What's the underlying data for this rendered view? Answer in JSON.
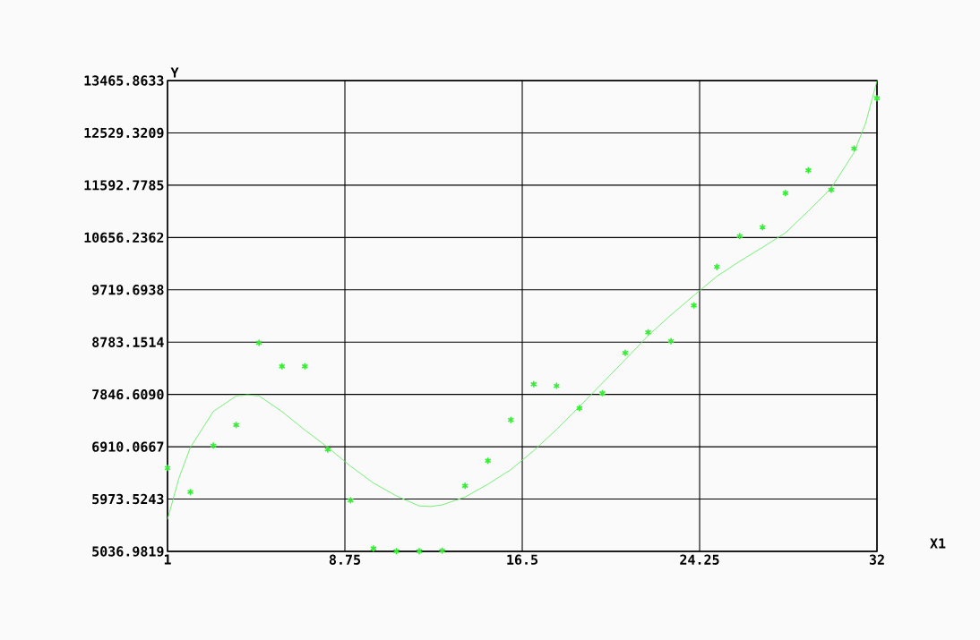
{
  "chart_data": {
    "type": "scatter",
    "xlabel": "X1",
    "ylabel": "Y",
    "xlim": [
      1,
      32
    ],
    "ylim": [
      5036.9819,
      13465.8633
    ],
    "xticks": [
      1,
      8.75,
      16.5,
      24.25,
      32
    ],
    "yticks": [
      {
        "value": 5036.9819,
        "label": "5036.9819"
      },
      {
        "value": 5973.5243,
        "label": "5973.5243"
      },
      {
        "value": 6910.0667,
        "label": "6910.0667"
      },
      {
        "value": 7846.609,
        "label": "7846.6090"
      },
      {
        "value": 8783.1514,
        "label": "8783.1514"
      },
      {
        "value": 9719.6938,
        "label": "9719.6938"
      },
      {
        "value": 10656.2362,
        "label": "10656.2362"
      },
      {
        "value": 11592.7785,
        "label": "11592.7785"
      },
      {
        "value": 12529.3209,
        "label": "12529.3209"
      },
      {
        "value": 13465.8633,
        "label": "13465.8633"
      }
    ],
    "grid": true,
    "series": [
      {
        "marker": "cross",
        "color": "#33ee33",
        "x": [
          1,
          2,
          3,
          4,
          5,
          6,
          7,
          8,
          9,
          10,
          11,
          12,
          13,
          14,
          15,
          16,
          17,
          18,
          19,
          20,
          21,
          22,
          23,
          24,
          25,
          26,
          27,
          28,
          29,
          30,
          31,
          32
        ],
        "values": [
          6530,
          6100,
          6930,
          7300,
          8770,
          8350,
          8350,
          6860,
          5950,
          5090,
          5040,
          5040,
          5050,
          6210,
          6660,
          7390,
          8030,
          8000,
          7600,
          7870,
          8590,
          8960,
          8800,
          9440,
          10130,
          10680,
          10840,
          11450,
          11860,
          11510,
          12250,
          13150
        ]
      },
      {
        "type": "line",
        "marker": "none",
        "line_style": "solid",
        "color": "#66ee66",
        "x": [
          1,
          1.5,
          2,
          3,
          4,
          4.5,
          5,
          6,
          7,
          8,
          9,
          10,
          11,
          12,
          12.5,
          13,
          14,
          15,
          16,
          17,
          18,
          19,
          20,
          21,
          22,
          23,
          24,
          25,
          26,
          27,
          28,
          29,
          30,
          31,
          31.5,
          32
        ],
        "values": [
          5610,
          6350,
          6900,
          7540,
          7820,
          7840,
          7820,
          7540,
          7210,
          6900,
          6560,
          6260,
          6030,
          5850,
          5840,
          5870,
          6010,
          6240,
          6500,
          6840,
          7220,
          7630,
          8050,
          8470,
          8900,
          9270,
          9620,
          9960,
          10230,
          10480,
          10740,
          11130,
          11540,
          12180,
          12700,
          13460
        ]
      }
    ]
  }
}
